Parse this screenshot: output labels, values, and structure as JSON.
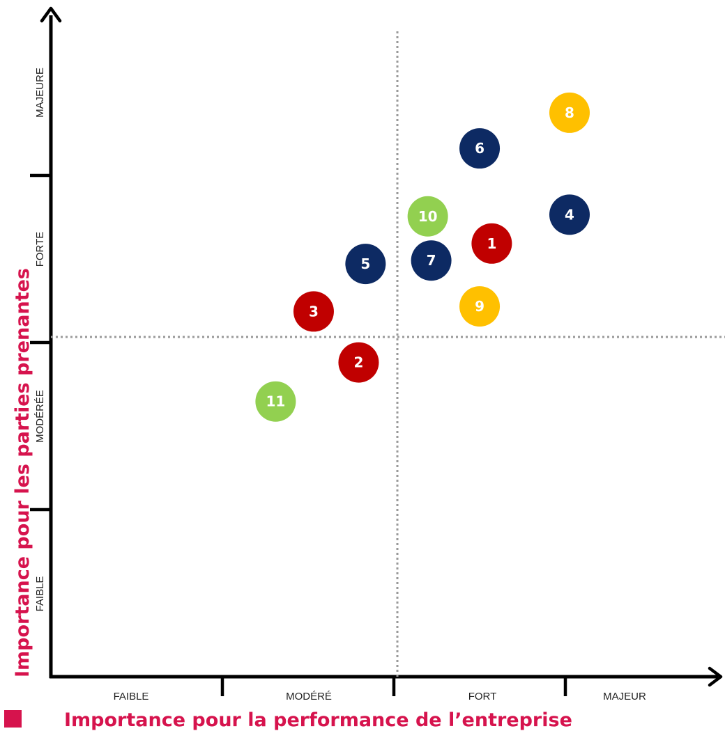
{
  "chart_data": {
    "type": "scatter",
    "xlabel": "Importance pour la performance de l’entreprise",
    "ylabel": "Importance pour les parties prenantes",
    "x_categories": [
      "FAIBLE",
      "MODÉRÉ",
      "FORT",
      "MAJEUR"
    ],
    "y_categories": [
      "FAIBLE",
      "MODÉRÉE",
      "FORTE",
      "MAJEURE"
    ],
    "xlim": [
      0,
      4
    ],
    "ylim": [
      0,
      4
    ],
    "grid": false,
    "reference_lines": {
      "x": 2,
      "y": 2
    },
    "colors": {
      "red": "#c00000",
      "navy": "#0d2a63",
      "green": "#92d050",
      "yellow": "#ffc000",
      "accent": "#d6134d",
      "axis": "#000000",
      "reference": "#999999"
    },
    "points": [
      {
        "label": "1",
        "x": 2.55,
        "y": 2.55,
        "color": "red"
      },
      {
        "label": "2",
        "x": 1.78,
        "y": 1.85,
        "color": "red"
      },
      {
        "label": "3",
        "x": 1.52,
        "y": 2.15,
        "color": "red"
      },
      {
        "label": "4",
        "x": 3.0,
        "y": 2.72,
        "color": "navy"
      },
      {
        "label": "5",
        "x": 1.82,
        "y": 2.43,
        "color": "navy"
      },
      {
        "label": "6",
        "x": 2.48,
        "y": 3.11,
        "color": "navy"
      },
      {
        "label": "7",
        "x": 2.2,
        "y": 2.45,
        "color": "navy"
      },
      {
        "label": "8",
        "x": 3.0,
        "y": 3.32,
        "color": "yellow"
      },
      {
        "label": "9",
        "x": 2.48,
        "y": 2.18,
        "color": "yellow"
      },
      {
        "label": "10",
        "x": 2.18,
        "y": 2.71,
        "color": "green"
      },
      {
        "label": "11",
        "x": 1.3,
        "y": 1.62,
        "color": "green"
      }
    ]
  }
}
